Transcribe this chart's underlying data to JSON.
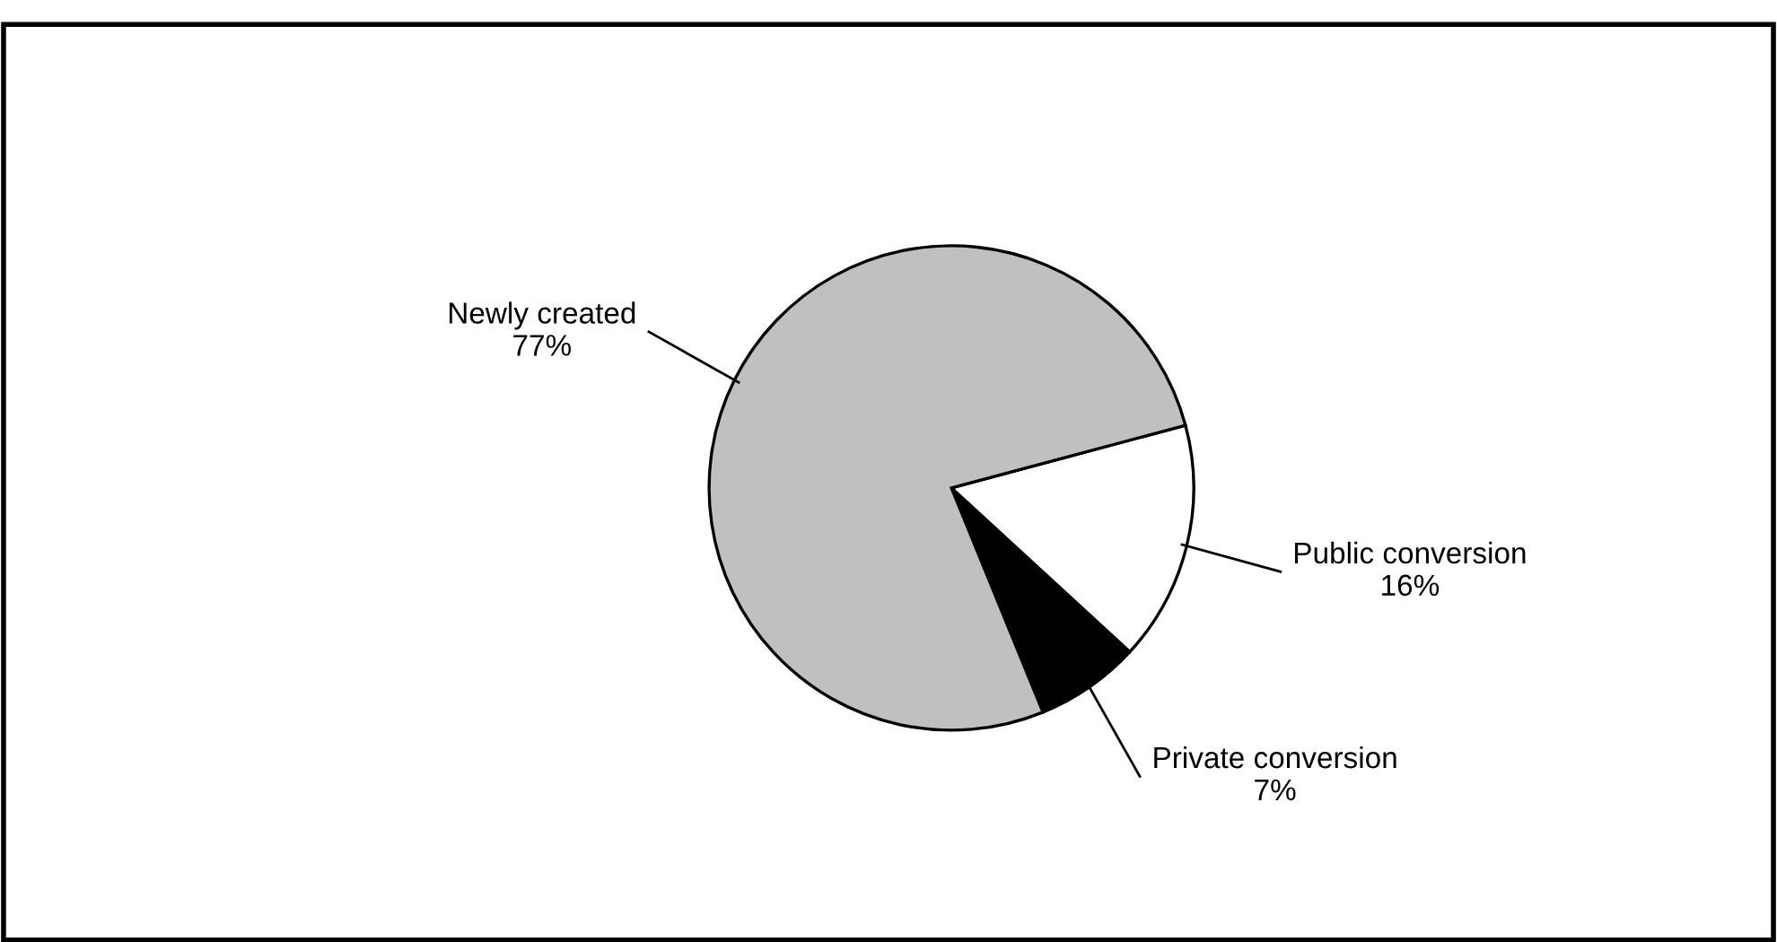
{
  "chart_data": {
    "type": "pie",
    "categories": [
      "Public conversion",
      "Private conversion",
      "Newly created"
    ],
    "values": [
      16,
      7,
      77
    ],
    "colors": [
      "#ffffff",
      "#000000",
      "#c0c0c0"
    ],
    "value_labels": [
      "16%",
      "7%",
      "77%"
    ]
  }
}
